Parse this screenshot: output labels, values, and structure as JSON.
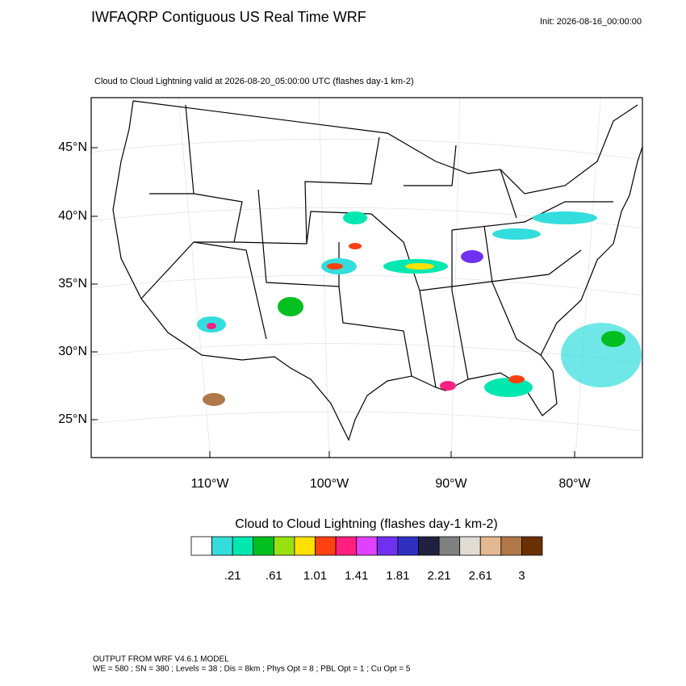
{
  "header": {
    "title": "IWFAQRP Contiguous US Real Time WRF",
    "init": "Init: 2026-08-16_00:00:00"
  },
  "map": {
    "subtitle": "Cloud to Cloud Lightning valid at 2026-08-20_05:00:00 UTC   (flashes day-1 km-2)",
    "lat_labels": [
      "45°N",
      "40°N",
      "35°N",
      "30°N",
      "25°N"
    ],
    "lon_labels": [
      "110°W",
      "100°W",
      "90°W",
      "80°W"
    ]
  },
  "colorbar": {
    "title": "Cloud to Cloud Lightning  (flashes day-1 km-2)",
    "colors": [
      "#ffffff",
      "#33dddd",
      "#00e8b0",
      "#00c020",
      "#99e010",
      "#ffe000",
      "#ff4010",
      "#ff2080",
      "#e040ff",
      "#7030f0",
      "#3030c0",
      "#202040",
      "#808080",
      "#e0dcd4",
      "#e4b890",
      "#b07848",
      "#6a3000"
    ],
    "labels": [
      ".21",
      ".61",
      "1.01",
      "1.41",
      "1.81",
      "2.21",
      "2.61",
      "3"
    ]
  },
  "footer": {
    "lines": [
      "OUTPUT FROM WRF V4.6.1 MODEL",
      "WE = 580 ; SN = 380 ; Levels = 38 ; Dis = 8km ; Phys Opt = 8 ; PBL Opt = 1 ; Cu Opt = 5"
    ]
  }
}
